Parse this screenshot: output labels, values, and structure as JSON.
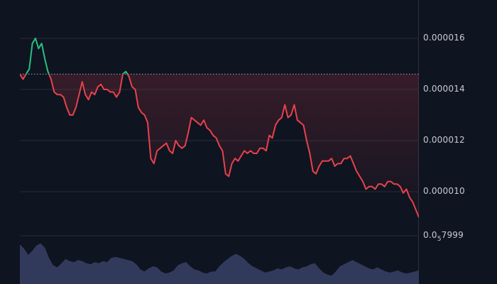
{
  "chart_data": {
    "type": "line",
    "title": "",
    "xlabel": "",
    "ylabel": "",
    "ylim": [
      8.75e-06,
      1.75e-05
    ],
    "y_ticks": [
      {
        "label": "0.000016",
        "value": 1.6e-05
      },
      {
        "label": "0.000014",
        "value": 1.4e-05
      },
      {
        "label": "0.000012",
        "value": 1.2e-05
      },
      {
        "label": "0.000010",
        "value": 1e-05
      }
    ],
    "bottom_tick": {
      "prefix": "0.0",
      "subscript": "5",
      "suffix": "7999"
    },
    "baseline_value": 1.46e-05,
    "series": [
      {
        "values": [
          1.46e-05,
          1.44e-05,
          1.46e-05,
          1.48e-05,
          1.58e-05,
          1.6e-05,
          1.56e-05,
          1.58e-05,
          1.52e-05,
          1.47e-05,
          1.44e-05,
          1.39e-05,
          1.38e-05,
          1.38e-05,
          1.37e-05,
          1.33e-05,
          1.3e-05,
          1.3e-05,
          1.33e-05,
          1.38e-05,
          1.43e-05,
          1.38e-05,
          1.36e-05,
          1.39e-05,
          1.38e-05,
          1.41e-05,
          1.42e-05,
          1.4e-05,
          1.4e-05,
          1.39e-05,
          1.39e-05,
          1.37e-05,
          1.39e-05,
          1.46e-05,
          1.47e-05,
          1.45e-05,
          1.41e-05,
          1.4e-05,
          1.33e-05,
          1.31e-05,
          1.3e-05,
          1.27e-05,
          1.13e-05,
          1.11e-05,
          1.16e-05,
          1.17e-05,
          1.18e-05,
          1.19e-05,
          1.16e-05,
          1.15e-05,
          1.2e-05,
          1.18e-05,
          1.17e-05,
          1.18e-05,
          1.23e-05,
          1.29e-05,
          1.28e-05,
          1.27e-05,
          1.26e-05,
          1.28e-05,
          1.25e-05,
          1.24e-05,
          1.22e-05,
          1.21e-05,
          1.18e-05,
          1.16e-05,
          1.07e-05,
          1.06e-05,
          1.11e-05,
          1.13e-05,
          1.12e-05,
          1.14e-05,
          1.16e-05,
          1.15e-05,
          1.16e-05,
          1.15e-05,
          1.15e-05,
          1.17e-05,
          1.17e-05,
          1.16e-05,
          1.22e-05,
          1.21e-05,
          1.26e-05,
          1.28e-05,
          1.29e-05,
          1.34e-05,
          1.29e-05,
          1.3e-05,
          1.34e-05,
          1.28e-05,
          1.27e-05,
          1.26e-05,
          1.2e-05,
          1.15e-05,
          1.08e-05,
          1.07e-05,
          1.1e-05,
          1.12e-05,
          1.12e-05,
          1.12e-05,
          1.13e-05,
          1.1e-05,
          1.11e-05,
          1.11e-05,
          1.13e-05,
          1.13e-05,
          1.14e-05,
          1.11e-05,
          1.08e-05,
          1.06e-05,
          1.04e-05,
          1.01e-05,
          1.02e-05,
          1.02e-05,
          1.01e-05,
          1.03e-05,
          1.03e-05,
          1.02e-05,
          1.04e-05,
          1.04e-05,
          1.03e-05,
          1.03e-05,
          1.02e-05,
          9.95e-06,
          1.01e-05,
          9.78e-06,
          9.6e-06,
          9.3e-06,
          9e-06
        ]
      }
    ],
    "volume": [
      38,
      34,
      28,
      32,
      37,
      39,
      35,
      25,
      18,
      16,
      20,
      24,
      22,
      21,
      23,
      22,
      20,
      19,
      21,
      20,
      22,
      21,
      25,
      26,
      25,
      24,
      23,
      22,
      19,
      14,
      12,
      15,
      17,
      16,
      12,
      10,
      11,
      13,
      18,
      20,
      21,
      17,
      14,
      13,
      11,
      10,
      12,
      12,
      17,
      21,
      24,
      27,
      29,
      27,
      24,
      20,
      17,
      15,
      13,
      11,
      12,
      13,
      15,
      14,
      16,
      17,
      15,
      14,
      16,
      17,
      19,
      20,
      15,
      11,
      9,
      8,
      12,
      17,
      19,
      21,
      23,
      21,
      19,
      17,
      15,
      14,
      16,
      14,
      12,
      11,
      12,
      13,
      11,
      10,
      11,
      12,
      13
    ],
    "colors": {
      "up": "#26c281",
      "down": "#e8424a",
      "volume_fill": "#323a5c",
      "baseline": "#c7cbd4",
      "grid": "#252b3a",
      "background": "#0f1421"
    }
  }
}
